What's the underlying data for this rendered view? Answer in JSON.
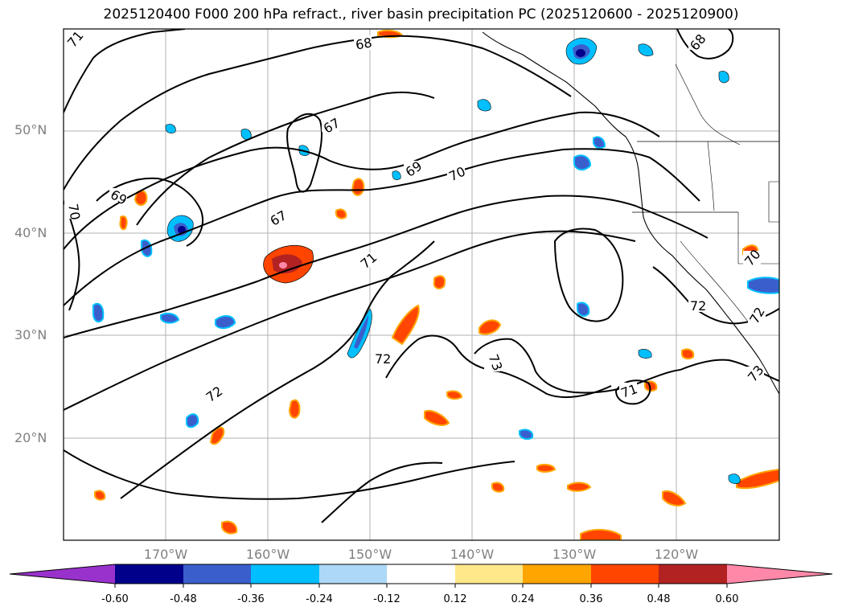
{
  "title": "2025120400 F000 200 hPa refract., river basin precipitation PC (2025120600 - 2025120900)",
  "map": {
    "lat_labels": [
      "50°N",
      "40°N",
      "30°N",
      "20°N"
    ],
    "lon_labels": [
      "170°W",
      "160°W",
      "150°W",
      "140°W",
      "130°W",
      "120°W"
    ],
    "contour_labels": [
      "71",
      "68",
      "68",
      "67",
      "69",
      "70",
      "69",
      "67",
      "70",
      "71",
      "72",
      "72",
      "73",
      "71",
      "72",
      "72",
      "73",
      "70"
    ],
    "colors": {
      "contour": "#000000",
      "grid": "#b0b0b0",
      "coast": "#000000"
    }
  },
  "colorbar": {
    "levels": [
      "-0.60",
      "-0.48",
      "-0.36",
      "-0.24",
      "-0.12",
      "0.12",
      "0.24",
      "0.36",
      "0.48",
      "0.60"
    ],
    "colors": [
      "#9932cc",
      "#00008b",
      "#3a5fcd",
      "#00bfff",
      "#add8f7",
      "#ffffff",
      "#ffe88a",
      "#ffa500",
      "#ff4500",
      "#b22222",
      "#ff88a8"
    ]
  }
}
